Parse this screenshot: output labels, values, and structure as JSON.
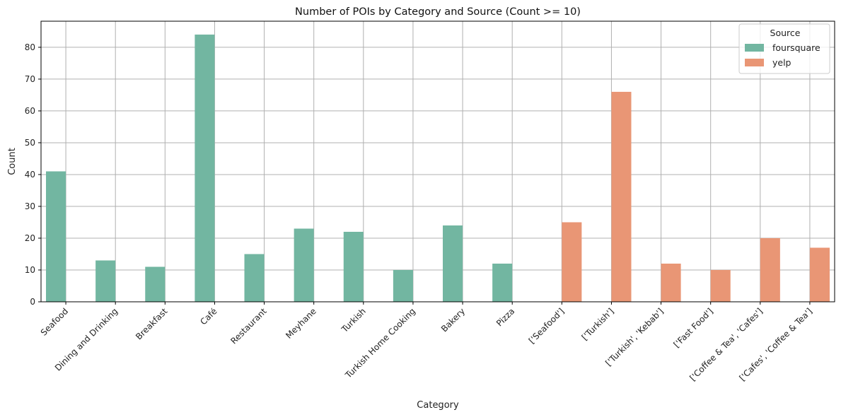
{
  "chart_data": {
    "type": "bar",
    "title": "Number of POIs by Category and Source (Count >= 10)",
    "xlabel": "Category",
    "ylabel": "Count",
    "ylim": [
      0,
      88.2
    ],
    "yticks": [
      0,
      10,
      20,
      30,
      40,
      50,
      60,
      70,
      80
    ],
    "grid": true,
    "legend": {
      "title": "Source",
      "placement": "top-right"
    },
    "categories": [
      "Seafood",
      "Dining and Drinking",
      "Breakfast",
      "Café",
      "Restaurant",
      "Meyhane",
      "Turkish",
      "Turkish Home Cooking",
      "Bakery",
      "Pizza",
      "['Seafood']",
      "['Turkish']",
      "['Turkish', 'Kebab']",
      "['Fast Food']",
      "['Coffee & Tea', 'Cafes']",
      "['Cafes', 'Coffee & Tea']"
    ],
    "series": [
      {
        "name": "foursquare",
        "color": "#72b6a1",
        "values": [
          41,
          13,
          11,
          84,
          15,
          23,
          22,
          10,
          24,
          12,
          null,
          null,
          null,
          null,
          null,
          null
        ]
      },
      {
        "name": "yelp",
        "color": "#e99675",
        "values": [
          null,
          null,
          null,
          null,
          null,
          null,
          null,
          null,
          null,
          null,
          25,
          66,
          12,
          10,
          20,
          17
        ]
      }
    ]
  }
}
